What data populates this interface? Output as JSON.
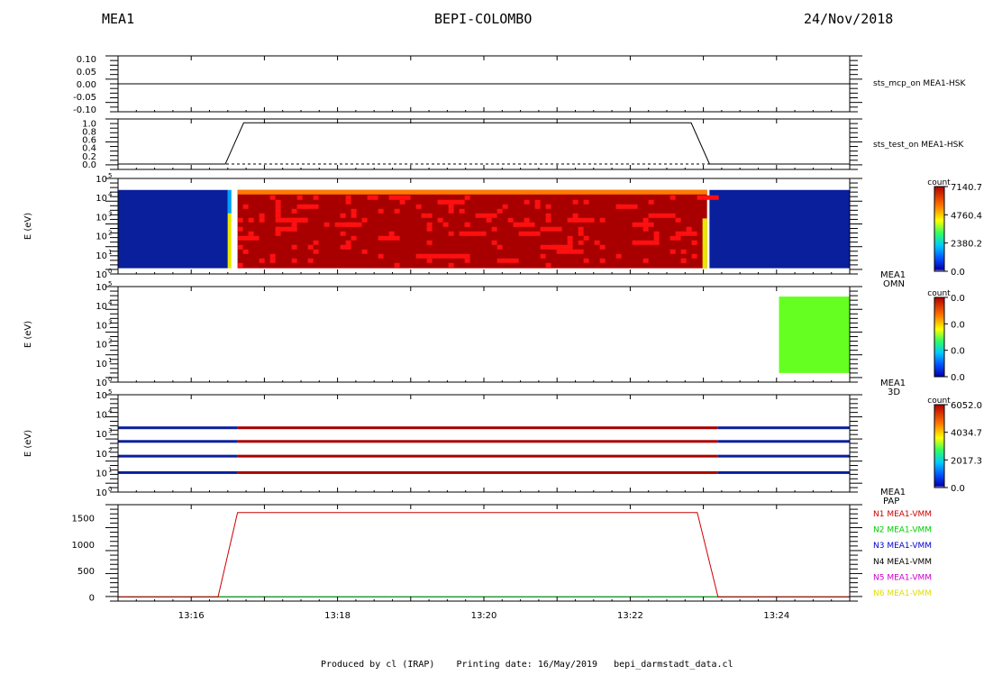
{
  "header": {
    "left": "MEA1",
    "center": "BEPI-COLOMBO",
    "right": "24/Nov/2018"
  },
  "footer": {
    "produced": "Produced by cl (IRAP)",
    "printing": "Printing date: 16/May/2019",
    "file": "bepi_darmstadt_data.cl"
  },
  "colors": {
    "blue": "#0a1f9c",
    "red": "#a80000",
    "bright_red": "#ff1010",
    "orange": "#ff7a00",
    "green": "#66ff22",
    "yellow": "#e8e800"
  },
  "chart_data": [
    {
      "type": "line",
      "panel": "sts_mcp_on",
      "label": "sts_mcp_on MEA1-HSK",
      "x": [
        "13:15:00",
        "13:25:00"
      ],
      "series": [
        {
          "values": [
            0.0,
            0.0
          ]
        }
      ],
      "yticks": [
        "0.10",
        "0.05",
        "0.00",
        "-0.05",
        "-0.10"
      ],
      "ylim": [
        -0.1,
        0.1
      ]
    },
    {
      "type": "line",
      "panel": "sts_test_on",
      "label": "sts_test_on MEA1-HSK",
      "x": [
        "13:15:00",
        "13:16:28",
        "13:16:43",
        "13:22:50",
        "13:23:05",
        "13:25:00"
      ],
      "series": [
        {
          "values": [
            0,
            0,
            1,
            1,
            0,
            0
          ]
        }
      ],
      "yticks": [
        "1.0",
        "0.8",
        "0.6",
        "0.4",
        "0.2",
        "0.0"
      ],
      "ylim": [
        0,
        1.05
      ]
    },
    {
      "type": "heatmap",
      "panel": "OMN",
      "label": [
        "MEA1",
        "OMN"
      ],
      "ylabel": "E (eV)",
      "yscale": "log",
      "yticks": [
        "10^5",
        "10^4",
        "10^3",
        "10^2",
        "10^1",
        "10^0"
      ],
      "ylim": [
        1,
        100000
      ],
      "colorbar": {
        "title": "count",
        "ticks": [
          "7140.7",
          "4760.4",
          "2380.2",
          "0.0"
        ],
        "max": 7140.7
      },
      "segments": [
        {
          "start": "13:15:00",
          "end": "13:16:30",
          "value": 0
        },
        {
          "start": "13:16:38",
          "end": "13:23:03",
          "value": 7140.7
        },
        {
          "start": "13:23:05",
          "end": "13:25:00",
          "value": 0
        }
      ],
      "energy_range": [
        2,
        25000
      ]
    },
    {
      "type": "heatmap",
      "panel": "3D",
      "label": [
        "MEA1",
        "3D"
      ],
      "ylabel": "E (eV)",
      "yscale": "log",
      "yticks": [
        "10^5",
        "10^4",
        "10^3",
        "10^2",
        "10^1",
        "10^0"
      ],
      "ylim": [
        1,
        100000
      ],
      "colorbar": {
        "title": "count",
        "ticks": [
          "0.0",
          "0.0",
          "0.0",
          "0.0"
        ],
        "max": 0.0
      },
      "segments": [
        {
          "start": "13:24:02",
          "end": "13:25:00",
          "value": 0
        }
      ],
      "energy_range": [
        3,
        30000
      ]
    },
    {
      "type": "heatmap",
      "panel": "PAP",
      "label": [
        "MEA1",
        "PAP"
      ],
      "ylabel": "E (eV)",
      "yscale": "log",
      "yticks": [
        "10^5",
        "10^4",
        "10^3",
        "10^2",
        "10^1",
        "10^0"
      ],
      "ylim": [
        1,
        100000
      ],
      "colorbar": {
        "title": "count",
        "ticks": [
          "6052.0",
          "4034.7",
          "2017.3",
          "0.0"
        ],
        "max": 6052.0
      },
      "bands_ev": [
        2000,
        400,
        70,
        10
      ],
      "segments": [
        {
          "start": "13:15:00",
          "end": "13:16:38",
          "value": 0
        },
        {
          "start": "13:16:38",
          "end": "13:23:12",
          "value": 6052.0
        },
        {
          "start": "13:23:12",
          "end": "13:25:00",
          "value": 0
        }
      ]
    },
    {
      "type": "line",
      "panel": "VMM",
      "x": [
        "13:15:00",
        "13:16:22",
        "13:16:38",
        "13:22:55",
        "13:23:12",
        "13:25:00"
      ],
      "series": [
        {
          "name": "N1 MEA1-VMM",
          "color": "#cc0000",
          "values": [
            0,
            0,
            1600,
            1600,
            0,
            0
          ]
        },
        {
          "name": "N2 MEA1-VMM",
          "color": "#00cc00",
          "values": [
            0,
            0,
            0,
            0,
            0,
            0
          ]
        },
        {
          "name": "N3 MEA1-VMM",
          "color": "#0000cc",
          "values": [
            0,
            0,
            0,
            0,
            0,
            0
          ]
        },
        {
          "name": "N4 MEA1-VMM",
          "color": "#000000",
          "values": [
            0,
            0,
            0,
            0,
            0,
            0
          ]
        },
        {
          "name": "N5 MEA1-VMM",
          "color": "#cc00cc",
          "values": [
            0,
            0,
            0,
            0,
            0,
            0
          ]
        },
        {
          "name": "N6 MEA1-VMM",
          "color": "#dddd00",
          "values": [
            0,
            0,
            0,
            0,
            0,
            0
          ]
        }
      ],
      "yticks": [
        "1500",
        "1000",
        "500",
        "0"
      ],
      "ylim": [
        -80,
        1750
      ]
    }
  ],
  "xaxis": {
    "start": "13:15:00",
    "end": "13:25:00",
    "ticks": [
      "13:16",
      "13:18",
      "13:20",
      "13:22",
      "13:24"
    ]
  }
}
